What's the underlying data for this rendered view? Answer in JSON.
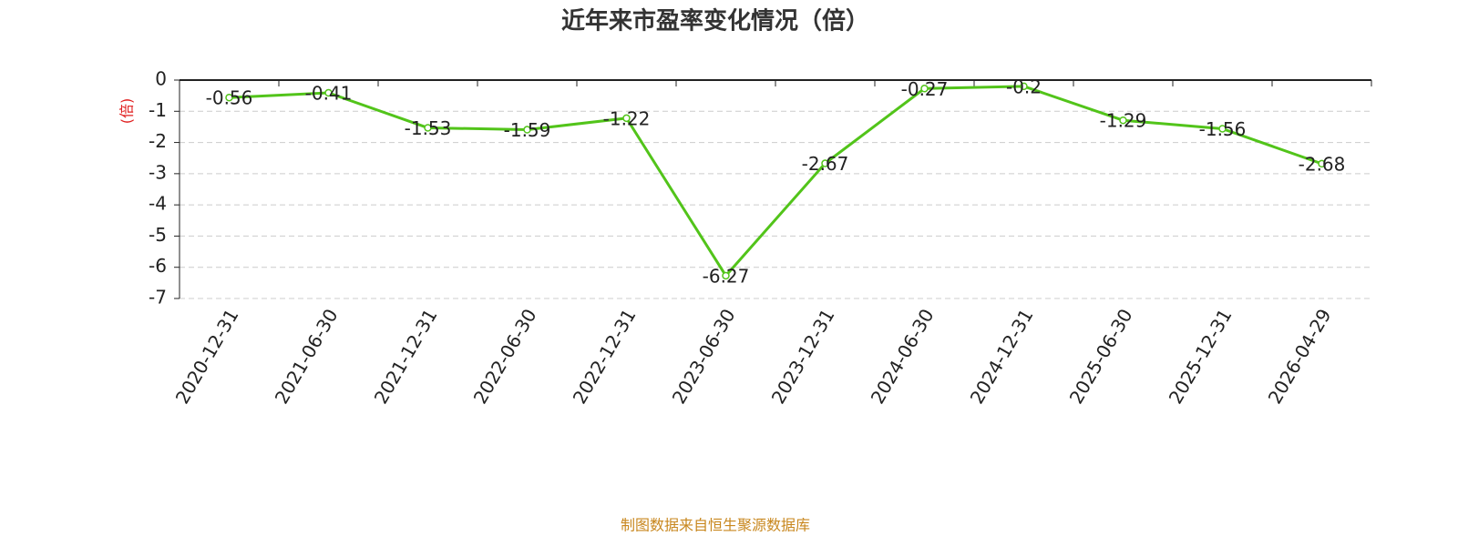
{
  "chart_data": {
    "type": "line",
    "title": "近年来市盈率变化情况（倍）",
    "y_label": "(倍)",
    "source": "制图数据来自恒生聚源数据库",
    "categories": [
      "2020-12-31",
      "2021-06-30",
      "2021-12-31",
      "2022-06-30",
      "2022-12-31",
      "2023-06-30",
      "2023-12-31",
      "2024-06-30",
      "2024-12-31",
      "2025-06-30",
      "2025-12-31",
      "2026-04-29"
    ],
    "values": [
      -0.56,
      -0.41,
      -1.53,
      -1.59,
      -1.22,
      -6.27,
      -2.67,
      -0.27,
      -0.2,
      -1.29,
      -1.56,
      -2.68
    ],
    "color": "#52c41a",
    "ylim": [
      -7,
      0
    ],
    "yticks": [
      0,
      -1,
      -2,
      -3,
      -4,
      -5,
      -6,
      -7
    ],
    "grid": true
  }
}
